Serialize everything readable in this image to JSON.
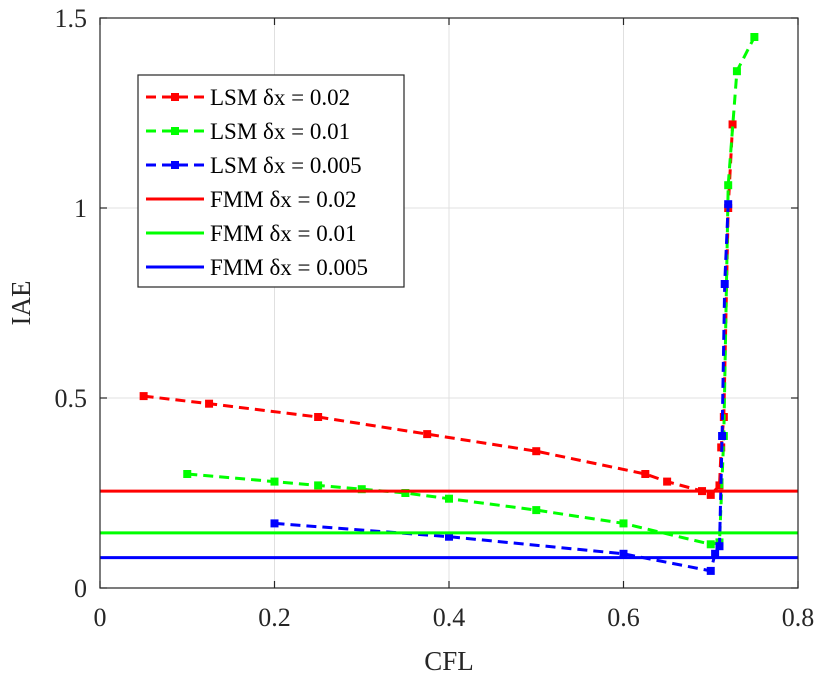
{
  "chart_data": {
    "type": "line",
    "xlabel": "CFL",
    "ylabel": "IAE",
    "xlim": [
      0,
      0.8
    ],
    "ylim": [
      0,
      1.5
    ],
    "x_ticks": [
      0,
      0.2,
      0.4,
      0.6,
      0.8
    ],
    "x_tick_labels": [
      "0",
      "0.2",
      "0.4",
      "0.6",
      "0.8"
    ],
    "y_ticks": [
      0,
      0.5,
      1,
      1.5
    ],
    "y_tick_labels": [
      "0",
      "0.5",
      "1",
      "1.5"
    ],
    "grid": true,
    "legend_position": "top-left",
    "series": [
      {
        "name": "LSM δx = 0.02",
        "style": "dashed-markers",
        "color": "#ff0000",
        "x": [
          0.05,
          0.125,
          0.25,
          0.375,
          0.5,
          0.625,
          0.65,
          0.69,
          0.7,
          0.71,
          0.712,
          0.715,
          0.72,
          0.725
        ],
        "y": [
          0.505,
          0.485,
          0.45,
          0.405,
          0.36,
          0.3,
          0.28,
          0.255,
          0.245,
          0.27,
          0.37,
          0.45,
          1.0,
          1.22
        ]
      },
      {
        "name": "LSM δx = 0.01",
        "style": "dashed-markers",
        "color": "#00ff00",
        "x": [
          0.1,
          0.2,
          0.25,
          0.3,
          0.35,
          0.4,
          0.5,
          0.6,
          0.7,
          0.71,
          0.715,
          0.72,
          0.73,
          0.75
        ],
        "y": [
          0.3,
          0.28,
          0.27,
          0.26,
          0.25,
          0.235,
          0.205,
          0.17,
          0.115,
          0.12,
          0.4,
          1.06,
          1.36,
          1.45
        ]
      },
      {
        "name": "LSM δx = 0.005",
        "style": "dashed-markers",
        "color": "#0000ff",
        "x": [
          0.2,
          0.4,
          0.6,
          0.7,
          0.705,
          0.71,
          0.713,
          0.716,
          0.72
        ],
        "y": [
          0.17,
          0.135,
          0.09,
          0.045,
          0.09,
          0.11,
          0.4,
          0.8,
          1.01
        ]
      },
      {
        "name": "FMM δx = 0.02",
        "style": "solid",
        "color": "#ff0000",
        "x": [
          0,
          0.8
        ],
        "y": [
          0.255,
          0.255
        ]
      },
      {
        "name": "FMM δx = 0.01",
        "style": "solid",
        "color": "#00ff00",
        "x": [
          0,
          0.8
        ],
        "y": [
          0.145,
          0.145
        ]
      },
      {
        "name": "FMM δx = 0.005",
        "style": "solid",
        "color": "#0000ff",
        "x": [
          0,
          0.8
        ],
        "y": [
          0.08,
          0.08
        ]
      }
    ]
  }
}
